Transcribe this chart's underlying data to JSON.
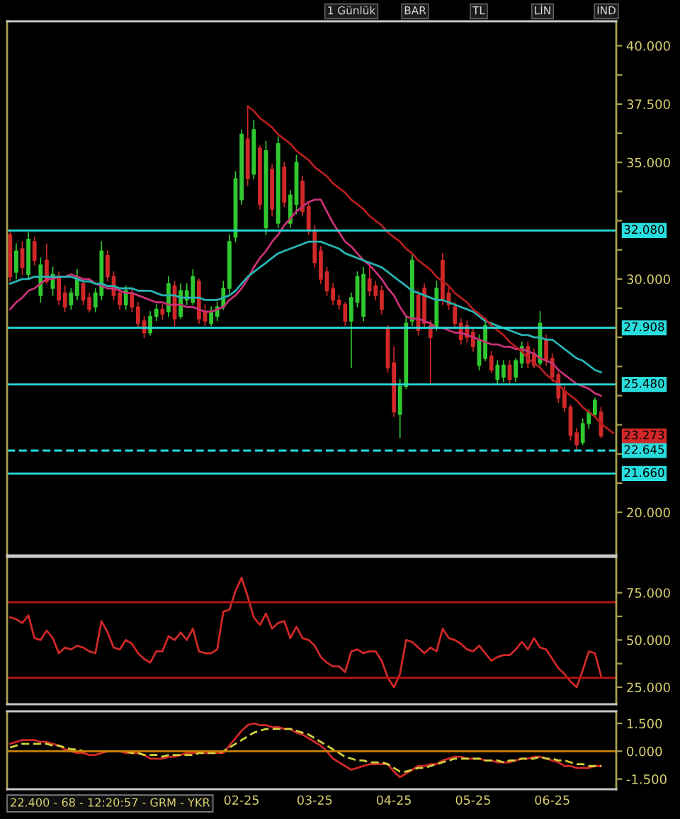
{
  "chart_data": [
    {
      "type": "candlestick",
      "ylim": [
        18.15,
        41.05
      ],
      "categories": [
        null,
        null,
        null,
        null,
        null,
        null,
        null,
        null,
        null,
        null,
        null,
        null,
        null,
        null,
        null,
        null,
        null,
        null,
        null,
        null,
        null,
        null,
        null,
        null,
        null,
        null,
        null,
        null,
        null,
        null,
        null,
        null,
        null,
        null,
        null,
        null,
        null,
        null,
        null,
        null,
        null,
        null,
        null,
        null,
        null,
        null,
        null,
        null,
        null,
        null,
        null,
        null,
        null,
        null,
        null,
        null,
        null,
        null,
        null,
        null,
        null,
        null,
        null,
        null,
        null,
        null,
        null,
        null,
        null,
        null,
        null,
        null,
        null,
        null,
        null,
        null,
        null,
        null,
        null,
        null,
        null,
        null,
        null,
        null,
        null,
        null,
        null,
        null,
        null,
        null,
        null,
        null,
        null,
        null,
        null,
        null,
        null,
        null,
        null,
        null
      ],
      "yticks": [
        {
          "value": 20,
          "label": "20.000"
        },
        {
          "value": 21.25,
          "label": null
        },
        {
          "value": 22.5,
          "label": null
        },
        {
          "value": 23.75,
          "label": null
        },
        {
          "value": 25,
          "label": null
        },
        {
          "value": 26.25,
          "label": null
        },
        {
          "value": 27.5,
          "label": null
        },
        {
          "value": 28.75,
          "label": null
        },
        {
          "value": 30,
          "label": "30.000"
        },
        {
          "value": 31.25,
          "label": null
        },
        {
          "value": 32.5,
          "label": null
        },
        {
          "value": 33.75,
          "label": null
        },
        {
          "value": 35,
          "label": "35.000"
        },
        {
          "value": 36.25,
          "label": null
        },
        {
          "value": 37.5,
          "label": "37.500"
        },
        {
          "value": 38.75,
          "label": null
        },
        {
          "value": 40,
          "label": "40.000"
        }
      ],
      "series": [
        {
          "type": "candlestick",
          "color": "#30c830",
          "ohlc": [
            null,
            [
              30.3,
              31.5,
              30.0,
              31.2
            ],
            null,
            [
              30.2,
              32.0,
              30.0,
              31.7
            ],
            null,
            [
              29.3,
              30.9,
              29.0,
              30.6
            ],
            null,
            [
              29.6,
              30.5,
              29.3,
              30.2
            ],
            null,
            null,
            [
              28.9,
              29.6,
              28.7,
              29.4
            ],
            [
              29.3,
              30.4,
              29.1,
              30.1
            ],
            null,
            null,
            [
              28.8,
              29.6,
              28.6,
              29.4
            ],
            [
              29.3,
              31.6,
              29.1,
              31.2
            ],
            null,
            null,
            null,
            [
              28.9,
              29.7,
              28.7,
              29.5
            ],
            null,
            null,
            null,
            [
              27.7,
              28.6,
              27.6,
              28.4
            ],
            [
              28.4,
              28.9,
              28.2,
              28.7
            ],
            null,
            [
              28.6,
              30.1,
              28.4,
              29.8
            ],
            null,
            [
              28.4,
              29.8,
              28.3,
              29.5
            ],
            [
              29.1,
              29.8,
              28.9,
              29.5
            ],
            [
              29.0,
              30.4,
              28.9,
              30.1
            ],
            null,
            null,
            [
              28.1,
              28.8,
              28.0,
              28.6
            ],
            [
              28.4,
              29.0,
              28.2,
              28.8
            ],
            [
              28.8,
              29.9,
              28.7,
              29.6
            ],
            [
              29.6,
              31.9,
              29.4,
              31.6
            ],
            [
              31.8,
              34.6,
              31.6,
              34.3
            ],
            [
              33.4,
              36.4,
              33.2,
              36.2
            ],
            null,
            [
              34.5,
              36.8,
              34.3,
              36.4
            ],
            null,
            [
              32.2,
              35.9,
              31.9,
              35.5
            ],
            null,
            [
              32.4,
              36.1,
              32.2,
              35.8
            ],
            null,
            [
              32.4,
              33.8,
              32.2,
              33.6
            ],
            [
              33.2,
              35.3,
              32.8,
              35.0
            ],
            null,
            null,
            null,
            null,
            null,
            null,
            null,
            null,
            [
              28.2,
              29.4,
              26.2,
              29.2
            ],
            [
              29.0,
              30.3,
              28.8,
              30.1
            ],
            [
              28.4,
              30.5,
              28.2,
              30.2
            ],
            null,
            null,
            null,
            null,
            null,
            [
              24.2,
              25.7,
              23.2,
              25.4
            ],
            [
              25.4,
              28.4,
              25.3,
              28.1
            ],
            [
              28.2,
              31.1,
              28.0,
              30.8
            ],
            null,
            null,
            null,
            [
              27.9,
              29.9,
              27.8,
              29.6
            ],
            null,
            null,
            null,
            null,
            null,
            null,
            [
              26.3,
              27.6,
              26.1,
              27.4
            ],
            [
              26.6,
              28.3,
              26.5,
              28.0
            ],
            null,
            [
              25.7,
              26.5,
              25.5,
              26.3
            ],
            [
              25.8,
              26.5,
              25.6,
              26.3
            ],
            null,
            [
              25.8,
              26.6,
              25.6,
              26.5
            ],
            [
              26.4,
              27.3,
              26.2,
              27.1
            ],
            null,
            null,
            [
              26.4,
              28.6,
              26.3,
              28.1
            ],
            null,
            null,
            null,
            null,
            null,
            null,
            [
              23.0,
              24.0,
              22.9,
              23.8
            ],
            [
              23.8,
              24.4,
              23.6,
              24.3
            ],
            [
              24.2,
              24.9,
              24.1,
              24.8
            ],
            null,
            null,
            null
          ]
        },
        {
          "type": "candlestick",
          "color": "#d02828",
          "ohlc": [
            [
              31.9,
              32.1,
              29.9,
              30.1
            ],
            null,
            [
              31.3,
              31.6,
              30.2,
              30.5
            ],
            null,
            [
              31.6,
              31.8,
              30.6,
              30.8
            ],
            null,
            [
              30.8,
              31.5,
              29.8,
              29.9
            ],
            null,
            [
              30.1,
              30.3,
              28.9,
              29.1
            ],
            [
              29.4,
              29.7,
              28.6,
              28.8
            ],
            null,
            null,
            [
              29.8,
              30.0,
              28.9,
              29.1
            ],
            [
              29.2,
              29.4,
              28.6,
              28.7
            ],
            null,
            null,
            [
              31.0,
              31.2,
              29.9,
              30.1
            ],
            [
              30.1,
              30.3,
              29.1,
              29.3
            ],
            [
              29.4,
              29.6,
              28.7,
              28.9
            ],
            null,
            [
              29.4,
              29.6,
              28.6,
              28.8
            ],
            [
              28.8,
              29.0,
              27.9,
              28.1
            ],
            [
              28.2,
              28.4,
              27.5,
              27.7
            ],
            null,
            null,
            [
              28.7,
              28.9,
              28.3,
              28.5
            ],
            null,
            [
              29.7,
              29.9,
              28.0,
              28.3
            ],
            null,
            null,
            null,
            [
              29.9,
              30.0,
              28.1,
              28.3
            ],
            [
              28.6,
              28.9,
              28.0,
              28.2
            ],
            null,
            null,
            null,
            null,
            null,
            null,
            [
              36.0,
              37.4,
              34.0,
              34.3
            ],
            null,
            [
              35.6,
              35.7,
              33.0,
              33.2
            ],
            null,
            [
              34.7,
              34.9,
              32.7,
              33.0
            ],
            null,
            [
              34.8,
              35.0,
              33.1,
              33.3
            ],
            null,
            null,
            [
              34.2,
              34.4,
              32.7,
              32.9
            ],
            [
              33.1,
              33.3,
              31.9,
              32.1
            ],
            [
              32.1,
              32.3,
              30.5,
              30.7
            ],
            [
              31.2,
              31.4,
              29.8,
              30.0
            ],
            [
              30.3,
              30.5,
              29.3,
              29.5
            ],
            [
              29.6,
              29.8,
              28.9,
              29.1
            ],
            [
              29.1,
              29.3,
              28.7,
              28.9
            ],
            [
              28.9,
              29.0,
              28.0,
              28.2
            ],
            null,
            null,
            null,
            [
              30.0,
              30.6,
              29.3,
              29.5
            ],
            [
              29.7,
              29.9,
              29.1,
              29.3
            ],
            [
              29.5,
              29.7,
              28.5,
              28.7
            ],
            [
              27.9,
              28.0,
              26.0,
              26.2
            ],
            [
              26.4,
              27.1,
              24.1,
              24.3
            ],
            null,
            null,
            null,
            [
              29.3,
              29.5,
              27.6,
              27.8
            ],
            [
              29.6,
              29.8,
              27.9,
              28.1
            ],
            [
              28.0,
              28.2,
              25.5,
              27.5
            ],
            null,
            [
              30.8,
              31.1,
              28.9,
              29.1
            ],
            [
              29.4,
              29.7,
              28.7,
              28.9
            ],
            [
              28.8,
              29.0,
              27.9,
              28.1
            ],
            [
              28.1,
              28.3,
              27.2,
              27.4
            ],
            [
              28.0,
              28.2,
              27.3,
              27.5
            ],
            [
              27.7,
              27.9,
              26.9,
              27.1
            ],
            null,
            null,
            [
              26.7,
              26.9,
              26.0,
              26.1
            ],
            null,
            null,
            [
              26.3,
              26.5,
              25.5,
              25.7
            ],
            null,
            null,
            [
              27.1,
              27.3,
              26.2,
              26.4
            ],
            [
              26.8,
              27.0,
              26.2,
              26.3
            ],
            null,
            [
              27.4,
              27.6,
              26.3,
              26.5
            ],
            [
              26.6,
              26.8,
              25.6,
              25.8
            ],
            [
              25.9,
              26.0,
              24.7,
              24.9
            ],
            [
              25.2,
              25.4,
              24.3,
              24.5
            ],
            [
              24.5,
              24.6,
              23.1,
              23.3
            ],
            [
              23.4,
              23.6,
              22.645,
              22.9
            ],
            null,
            null,
            null,
            [
              24.3,
              24.5,
              23.2,
              23.273
            ],
            null,
            null
          ],
          "value_labels": [
            null,
            null,
            null,
            null,
            null,
            null,
            null,
            null,
            null,
            null,
            null,
            null,
            null,
            null,
            null,
            null,
            null,
            null,
            null,
            null,
            null,
            null,
            null,
            null,
            null,
            null,
            null,
            null,
            null,
            null,
            null,
            null,
            null,
            null,
            null,
            null,
            null,
            null,
            null,
            null,
            null,
            null,
            null,
            null,
            null,
            null,
            null,
            null,
            null,
            null,
            null,
            null,
            null,
            null,
            null,
            null,
            null,
            null,
            null,
            null,
            null,
            null,
            null,
            null,
            null,
            null,
            null,
            null,
            null,
            null,
            null,
            null,
            null,
            null,
            null,
            null,
            null,
            null,
            null,
            null,
            null,
            null,
            null,
            null,
            null,
            null,
            null,
            null,
            null,
            null,
            null,
            null,
            null,
            null,
            null,
            null,
            null,
            "23.273",
            null,
            null
          ]
        },
        {
          "type": "line",
          "color": "#c83278",
          "values": [
            28.7,
            29.0,
            29.2,
            29.5,
            29.6,
            29.8,
            30.0,
            30.0,
            30.1,
            30.1,
            30.2,
            30.1,
            30.0,
            30.0,
            29.8,
            29.7,
            29.6,
            29.6,
            29.5,
            29.4,
            29.4,
            29.3,
            29.2,
            29.1,
            29.0,
            29.0,
            28.9,
            28.9,
            28.9,
            28.8,
            28.8,
            28.7,
            28.6,
            28.6,
            28.7,
            28.8,
            29.1,
            29.3,
            29.6,
            30.0,
            30.5,
            30.9,
            31.2,
            31.6,
            31.9,
            32.3,
            32.6,
            32.9,
            33.1,
            33.3,
            33.4,
            33.4,
            32.9,
            32.4,
            32.0,
            31.6,
            31.4,
            31.1,
            30.8,
            30.6,
            30.3,
            30.0,
            29.6,
            29.3,
            28.8,
            28.4,
            28.3,
            28.3,
            28.2,
            28.1,
            27.9,
            27.9,
            27.8,
            27.7,
            27.7,
            27.6,
            27.5,
            27.4,
            27.3,
            27.2,
            27.2,
            27.1,
            27.1,
            27.0,
            27.0,
            26.9,
            26.8,
            26.6,
            26.5,
            26.4,
            26.1,
            25.9,
            25.7,
            25.5,
            25.4,
            25.3,
            25.1,
            25.0,
            null,
            null
          ]
        },
        {
          "type": "line",
          "color": "#28b4b4",
          "values": [
            29.8,
            29.9,
            30.0,
            30.0,
            30.1,
            30.1,
            30.1,
            30.1,
            30.1,
            30.1,
            30.1,
            30.0,
            29.9,
            29.9,
            29.8,
            29.8,
            29.7,
            29.7,
            29.6,
            29.6,
            29.6,
            29.5,
            29.5,
            29.5,
            29.4,
            29.3,
            29.3,
            29.3,
            29.2,
            29.2,
            29.2,
            29.2,
            29.1,
            29.1,
            29.1,
            29.2,
            29.3,
            29.5,
            29.8,
            30.1,
            30.3,
            30.5,
            30.7,
            30.9,
            31.1,
            31.2,
            31.3,
            31.4,
            31.5,
            31.6,
            31.6,
            31.6,
            31.5,
            31.4,
            31.3,
            31.1,
            31.0,
            30.9,
            30.8,
            30.7,
            30.6,
            30.5,
            30.3,
            30.1,
            29.9,
            29.7,
            29.5,
            29.4,
            29.3,
            29.2,
            29.1,
            29.1,
            29.0,
            28.9,
            28.8,
            28.7,
            28.6,
            28.4,
            28.2,
            28.1,
            28.0,
            27.9,
            27.8,
            27.7,
            27.6,
            27.6,
            27.5,
            27.5,
            27.4,
            27.4,
            27.2,
            27.0,
            26.8,
            26.6,
            26.5,
            26.3,
            26.1,
            26.0,
            null,
            null
          ]
        },
        {
          "type": "line",
          "color": "#b41e1e",
          "values": [
            null,
            null,
            null,
            null,
            null,
            null,
            null,
            null,
            null,
            null,
            null,
            null,
            null,
            null,
            null,
            null,
            null,
            null,
            null,
            null,
            null,
            null,
            null,
            null,
            null,
            null,
            null,
            null,
            null,
            null,
            null,
            null,
            null,
            null,
            null,
            null,
            null,
            null,
            null,
            37.4,
            37.2,
            36.9,
            36.7,
            36.5,
            36.2,
            36.0,
            35.8,
            35.5,
            35.3,
            35.1,
            34.8,
            34.6,
            34.4,
            34.1,
            33.9,
            33.7,
            33.4,
            33.2,
            33.0,
            32.7,
            32.5,
            32.3,
            32.0,
            31.8,
            31.6,
            31.3,
            31.1,
            30.8,
            30.6,
            30.4,
            30.1,
            29.9,
            29.7,
            29.4,
            29.2,
            29.0,
            28.7,
            28.5,
            28.3,
            28.0,
            27.8,
            27.6,
            27.3,
            27.1,
            26.9,
            26.6,
            26.4,
            26.2,
            25.9,
            25.7,
            25.5,
            25.2,
            25.0,
            24.8,
            24.5,
            24.3,
            24.1,
            23.8,
            23.6,
            23.4
          ]
        }
      ],
      "ref_lines": [
        {
          "axis": "y",
          "value": 32.08,
          "label": "32.080",
          "color": "#28dcdc"
        },
        {
          "axis": "y",
          "value": 27.908,
          "label": "27.908",
          "color": "#28dcdc"
        },
        {
          "axis": "y",
          "value": 25.48,
          "label": "25.480",
          "color": "#28dcdc"
        },
        {
          "axis": "y",
          "value": 22.645,
          "label": "22.645",
          "color": "#28dcdc",
          "line_style": "dashed"
        },
        {
          "axis": "y",
          "value": 21.66,
          "label": "21.660",
          "color": "#28dcdc"
        }
      ],
      "annotations": [
        "1 Günlük",
        "BAR",
        "TL",
        "LİN",
        "IND"
      ]
    },
    {
      "type": "line",
      "ylim": [
        16,
        94
      ],
      "categories": [
        null,
        null,
        null,
        null,
        null,
        null,
        null,
        null,
        null,
        null,
        null,
        null,
        null,
        null,
        null,
        null,
        null,
        null,
        null,
        null,
        null,
        null,
        null,
        null,
        null,
        null,
        null,
        null,
        null,
        null,
        null,
        null,
        null,
        null,
        null,
        null,
        null,
        null,
        null,
        null,
        null,
        null,
        null,
        null,
        null,
        null,
        null,
        null,
        null,
        null,
        null,
        null,
        null,
        null,
        null,
        null,
        null,
        null,
        null,
        null,
        null,
        null,
        null,
        null,
        null,
        null,
        null,
        null,
        null,
        null,
        null,
        null,
        null,
        null,
        null,
        null,
        null,
        null,
        null,
        null,
        null,
        null,
        null,
        null,
        null,
        null,
        null,
        null,
        null,
        null,
        null,
        null,
        null,
        null,
        null,
        null,
        null,
        null,
        null,
        null
      ],
      "yticks": [
        {
          "value": 25,
          "label": "25.000"
        },
        {
          "value": 37.5,
          "label": null
        },
        {
          "value": 50,
          "label": "50.000"
        },
        {
          "value": 62.5,
          "label": null
        },
        {
          "value": 75,
          "label": "75.000"
        }
      ],
      "series": [
        {
          "color": "#d02828",
          "values": [
            62,
            61,
            59,
            63,
            51,
            50,
            55,
            51,
            43,
            46,
            45,
            47,
            46,
            44,
            43,
            60,
            54,
            46,
            45,
            50,
            48,
            43,
            40,
            38,
            44,
            44,
            52,
            50,
            54,
            50,
            56,
            44,
            43,
            43,
            45,
            65,
            66,
            76,
            83,
            73,
            62,
            58,
            64,
            56,
            59,
            60,
            51,
            57,
            51,
            50,
            47,
            41,
            38,
            36,
            36,
            33,
            44,
            45,
            43,
            44,
            44,
            39,
            30,
            25,
            32,
            50,
            49,
            46,
            43,
            46,
            44,
            56,
            51,
            50,
            48,
            45,
            44,
            47,
            43,
            39,
            41,
            42,
            42,
            45,
            49,
            45,
            51,
            46,
            45,
            40,
            35,
            32,
            28,
            25,
            34,
            44,
            43,
            31,
            null,
            null
          ]
        }
      ],
      "ref_lines": [
        {
          "axis": "y",
          "value": 70,
          "color": "#b41414"
        },
        {
          "axis": "y",
          "value": 30,
          "color": "#b41414"
        }
      ]
    },
    {
      "type": "line",
      "ylim": [
        -2.05,
        2.15
      ],
      "categories": [
        null,
        null,
        null,
        null,
        null,
        null,
        null,
        null,
        null,
        null,
        null,
        null,
        null,
        null,
        null,
        null,
        null,
        null,
        null,
        null,
        null,
        null,
        null,
        null,
        null,
        null,
        null,
        null,
        null,
        null,
        null,
        null,
        null,
        null,
        null,
        null,
        null,
        null,
        "02-25",
        null,
        null,
        null,
        null,
        null,
        null,
        null,
        null,
        null,
        null,
        null,
        "03-25",
        null,
        null,
        null,
        null,
        null,
        null,
        null,
        null,
        null,
        null,
        null,
        null,
        "04-25",
        null,
        null,
        null,
        null,
        null,
        null,
        null,
        null,
        null,
        null,
        null,
        null,
        "05-25",
        null,
        null,
        null,
        null,
        null,
        null,
        null,
        null,
        null,
        null,
        null,
        null,
        "06-25",
        null,
        null,
        null,
        null,
        null,
        null,
        null,
        null,
        null,
        null
      ],
      "yticks": [
        {
          "value": -1.5,
          "label": "-1.500"
        },
        {
          "value": 0,
          "label": "0.000"
        },
        {
          "value": 1.5,
          "label": "1.500"
        }
      ],
      "series": [
        {
          "color": "#d02828",
          "values": [
            0.4,
            0.5,
            0.6,
            0.6,
            0.6,
            0.5,
            0.5,
            0.4,
            0.3,
            0.1,
            0.0,
            -0.1,
            -0.1,
            -0.2,
            -0.2,
            -0.1,
            0.0,
            0.0,
            0.0,
            -0.1,
            -0.1,
            -0.1,
            -0.2,
            -0.4,
            -0.4,
            -0.4,
            -0.3,
            -0.3,
            -0.2,
            -0.1,
            -0.1,
            -0.1,
            -0.1,
            -0.1,
            -0.1,
            -0.1,
            0.3,
            0.7,
            1.1,
            1.4,
            1.5,
            1.4,
            1.4,
            1.3,
            1.3,
            1.2,
            1.2,
            1.0,
            0.9,
            0.7,
            0.5,
            0.3,
            0.0,
            -0.4,
            -0.6,
            -0.8,
            -1.0,
            -0.9,
            -0.8,
            -0.7,
            -0.7,
            -0.7,
            -0.7,
            -1.1,
            -1.4,
            -1.2,
            -1.0,
            -0.8,
            -0.8,
            -0.7,
            -0.7,
            -0.5,
            -0.4,
            -0.3,
            -0.3,
            -0.4,
            -0.4,
            -0.4,
            -0.5,
            -0.5,
            -0.6,
            -0.6,
            -0.6,
            -0.5,
            -0.4,
            -0.4,
            -0.3,
            -0.3,
            -0.4,
            -0.5,
            -0.6,
            -0.8,
            -0.8,
            -0.9,
            -0.9,
            -0.9,
            -0.8,
            -0.8,
            null,
            null
          ]
        },
        {
          "color": "#d2d23c",
          "line_style": "dashed",
          "values": [
            0.2,
            0.3,
            0.4,
            0.4,
            0.4,
            0.4,
            0.4,
            0.3,
            0.3,
            0.2,
            0.1,
            0.1,
            0.0,
            0.0,
            0.0,
            0.0,
            0.0,
            0.0,
            0.0,
            0.0,
            -0.1,
            -0.1,
            -0.2,
            -0.2,
            -0.2,
            -0.3,
            -0.2,
            -0.2,
            -0.2,
            -0.2,
            -0.2,
            -0.1,
            -0.1,
            -0.1,
            -0.1,
            0.0,
            0.2,
            0.4,
            0.6,
            0.8,
            1.0,
            1.1,
            1.2,
            1.2,
            1.2,
            1.2,
            1.2,
            1.1,
            1.0,
            0.9,
            0.7,
            0.5,
            0.3,
            0.1,
            -0.1,
            -0.3,
            -0.4,
            -0.5,
            -0.5,
            -0.6,
            -0.6,
            -0.6,
            -0.7,
            -0.9,
            -1.1,
            -1.1,
            -1.0,
            -0.9,
            -0.9,
            -0.8,
            -0.7,
            -0.6,
            -0.5,
            -0.4,
            -0.4,
            -0.4,
            -0.4,
            -0.4,
            -0.5,
            -0.5,
            -0.5,
            -0.6,
            -0.5,
            -0.5,
            -0.4,
            -0.4,
            -0.4,
            -0.3,
            -0.4,
            -0.4,
            -0.5,
            -0.5,
            -0.6,
            -0.7,
            -0.7,
            -0.8,
            -0.8,
            -0.8,
            null,
            null
          ]
        }
      ],
      "ref_lines": [
        {
          "axis": "y",
          "value": 0,
          "color": "#c88200"
        }
      ],
      "annotations": [
        "22.400 - 68 - 12:20:57 - GRM - YKR"
      ]
    }
  ]
}
